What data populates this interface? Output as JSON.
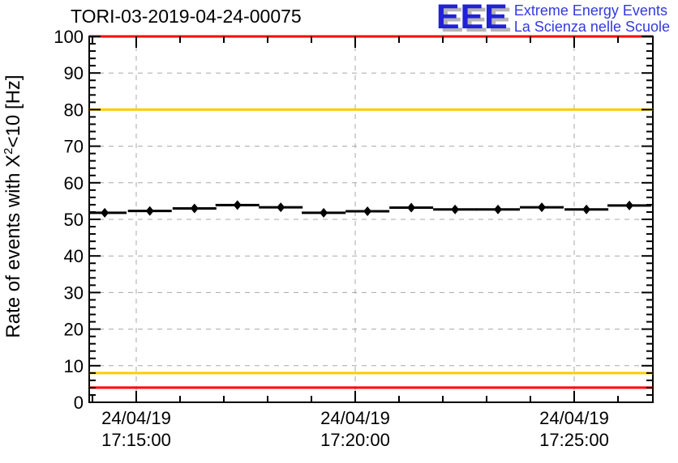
{
  "header": {
    "title": "TORI-03-2019-04-24-00075",
    "logo": {
      "letters": "EEE",
      "line1": "Extreme Energy Events",
      "line2": "La Scienza nelle Scuole",
      "letters_color": "#2121d8",
      "shadow_color": "#b5b5b5",
      "text_color": "#3339dd"
    }
  },
  "chart_data": {
    "type": "scatter",
    "title": "TORI-03-2019-04-24-00075",
    "ylabel": "Rate of events with X^2<10 [Hz]",
    "ylabel_parts": {
      "pre": "Rate of events with X",
      "sup": "2",
      "post": "<10 [Hz]"
    },
    "ylim": [
      0,
      100
    ],
    "y_major_tick_step": 10,
    "y_minor_tick_step": 2,
    "grid": true,
    "legend": "none",
    "x_major_ticks": [
      {
        "minutes": 0,
        "date": "24/04/19",
        "time": "17:15:00"
      },
      {
        "minutes": 5,
        "date": "24/04/19",
        "time": "17:20:00"
      },
      {
        "minutes": 10,
        "date": "24/04/19",
        "time": "17:25:00"
      }
    ],
    "x_minor_tick_minutes": [
      -1,
      1,
      2,
      3,
      4,
      6,
      7,
      8,
      9,
      11
    ],
    "series": [
      {
        "name": "event-rate",
        "marker": "filled-diamond",
        "color": "#000000",
        "x_minutes": [
          -0.72,
          0.31,
          1.33,
          2.31,
          3.3,
          4.28,
          5.28,
          6.28,
          7.28,
          8.26,
          9.26,
          10.28,
          11.26
        ],
        "times": [
          "17:14:17",
          "17:15:19",
          "17:16:20",
          "17:17:19",
          "17:18:18",
          "17:19:17",
          "17:20:17",
          "17:21:17",
          "17:22:17",
          "17:23:16",
          "17:24:16",
          "17:25:17",
          "17:26:16"
        ],
        "values": [
          51.8,
          52.3,
          53.0,
          53.9,
          53.3,
          51.8,
          52.2,
          53.2,
          52.7,
          52.7,
          53.3,
          52.7,
          53.8
        ],
        "x_err_minutes": 0.5,
        "y_err": 0.9
      }
    ],
    "threshold_lines": [
      {
        "value": 100,
        "color": "#ff0000"
      },
      {
        "value": 80,
        "color": "#ffcc00"
      },
      {
        "value": 8,
        "color": "#ffcc00"
      },
      {
        "value": 4,
        "color": "#ff0000"
      }
    ],
    "colors": {
      "grid": "#a8a8a8",
      "axis": "#000000",
      "marker": "#000000"
    }
  }
}
